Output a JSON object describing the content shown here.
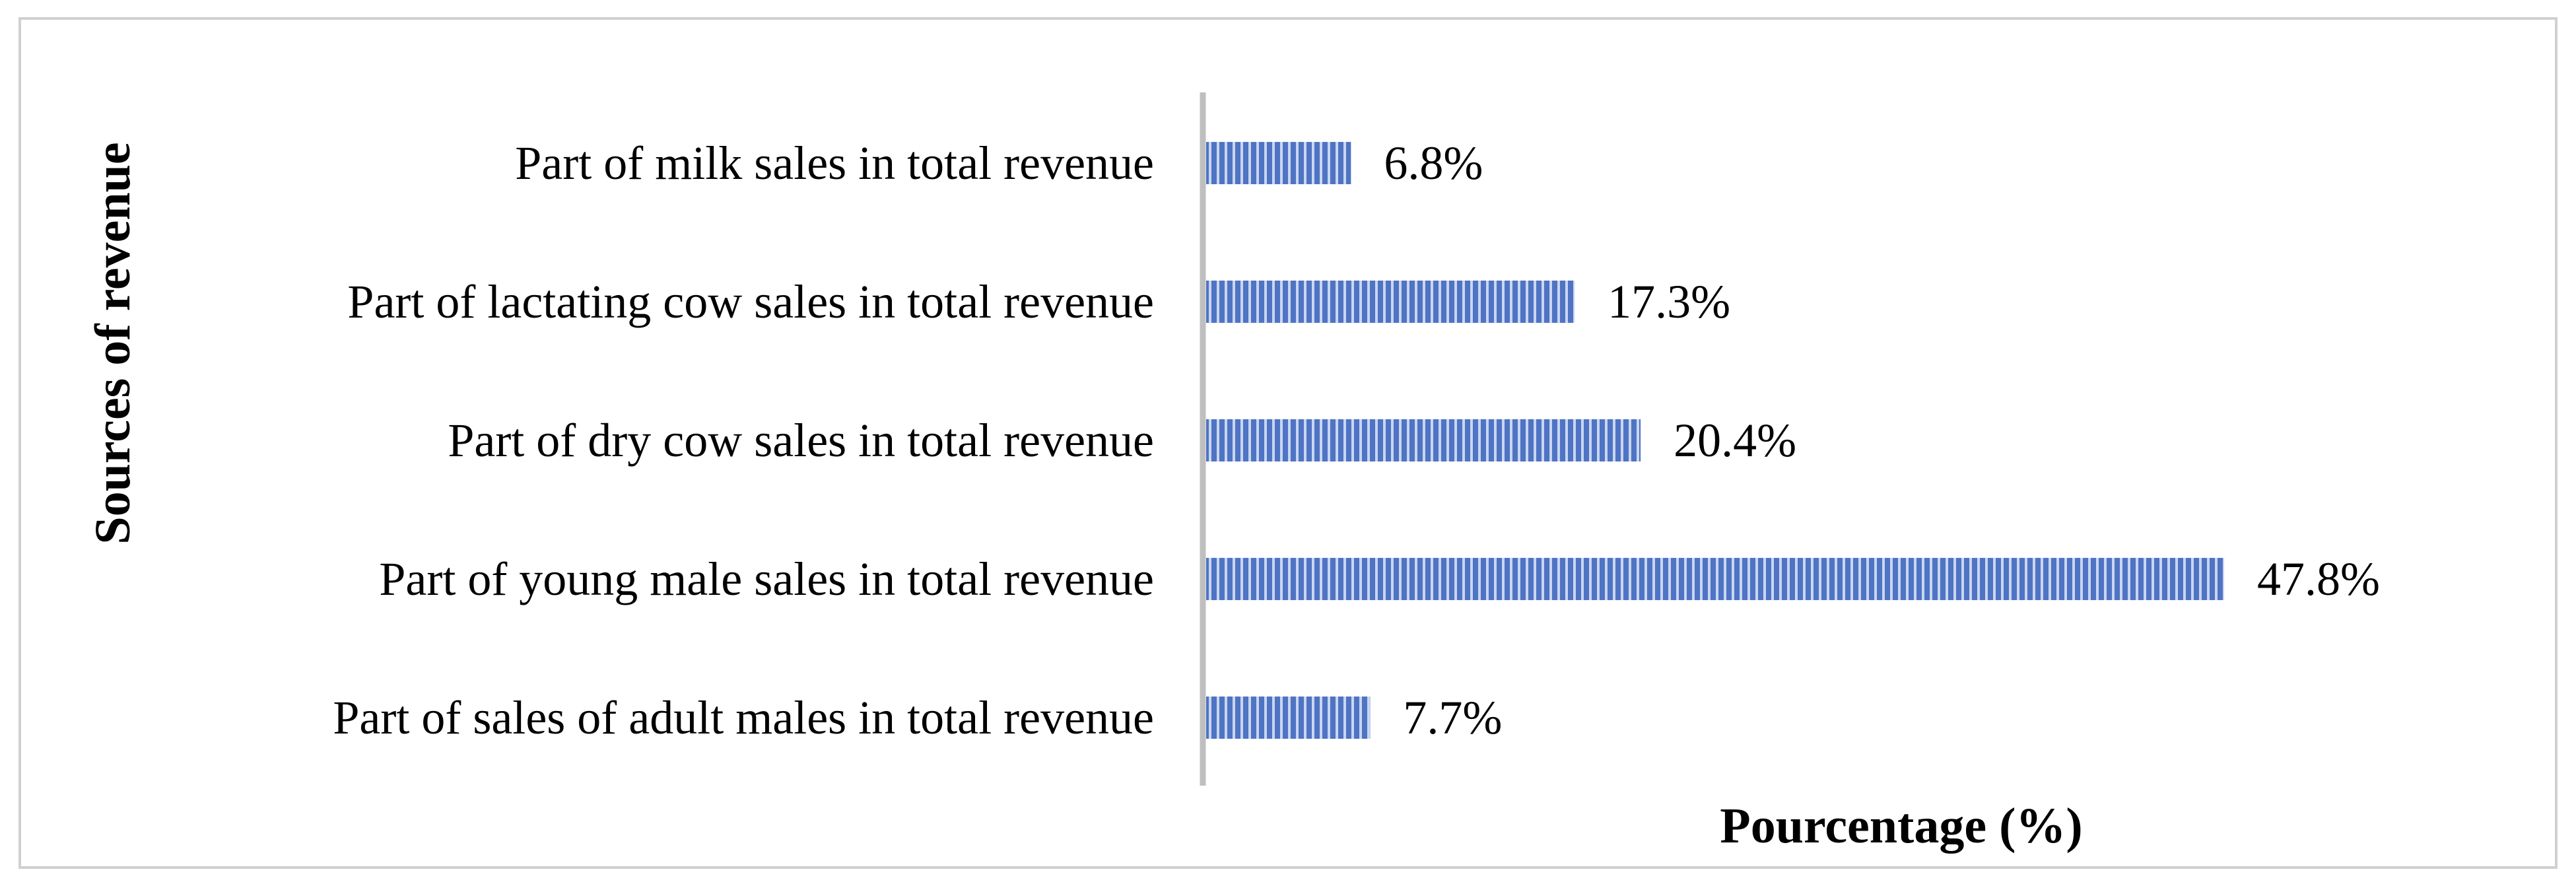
{
  "chart_data": {
    "type": "bar",
    "orientation": "horizontal",
    "categories": [
      "Part of milk sales in total revenue",
      "Part of lactating cow sales in total revenue",
      "Part of dry cow sales in total revenue",
      "Part of young male sales in total revenue",
      "Part of sales of adult males in total revenue"
    ],
    "values": [
      6.8,
      17.3,
      20.4,
      47.8,
      7.7
    ],
    "value_labels": [
      "6.8%",
      "17.3%",
      "20.4%",
      "47.8%",
      "7.7%"
    ],
    "xlabel": "Pourcentage (%)",
    "ylabel": "Sources of revenue",
    "xlim": [
      0,
      50
    ],
    "grid": false,
    "legend": "none",
    "colors": {
      "bar_fill": "#4f74c4",
      "bar_stripe": "#c9d6f0",
      "axis": "#bfbfbf",
      "frame": "#d0d0d0"
    }
  }
}
